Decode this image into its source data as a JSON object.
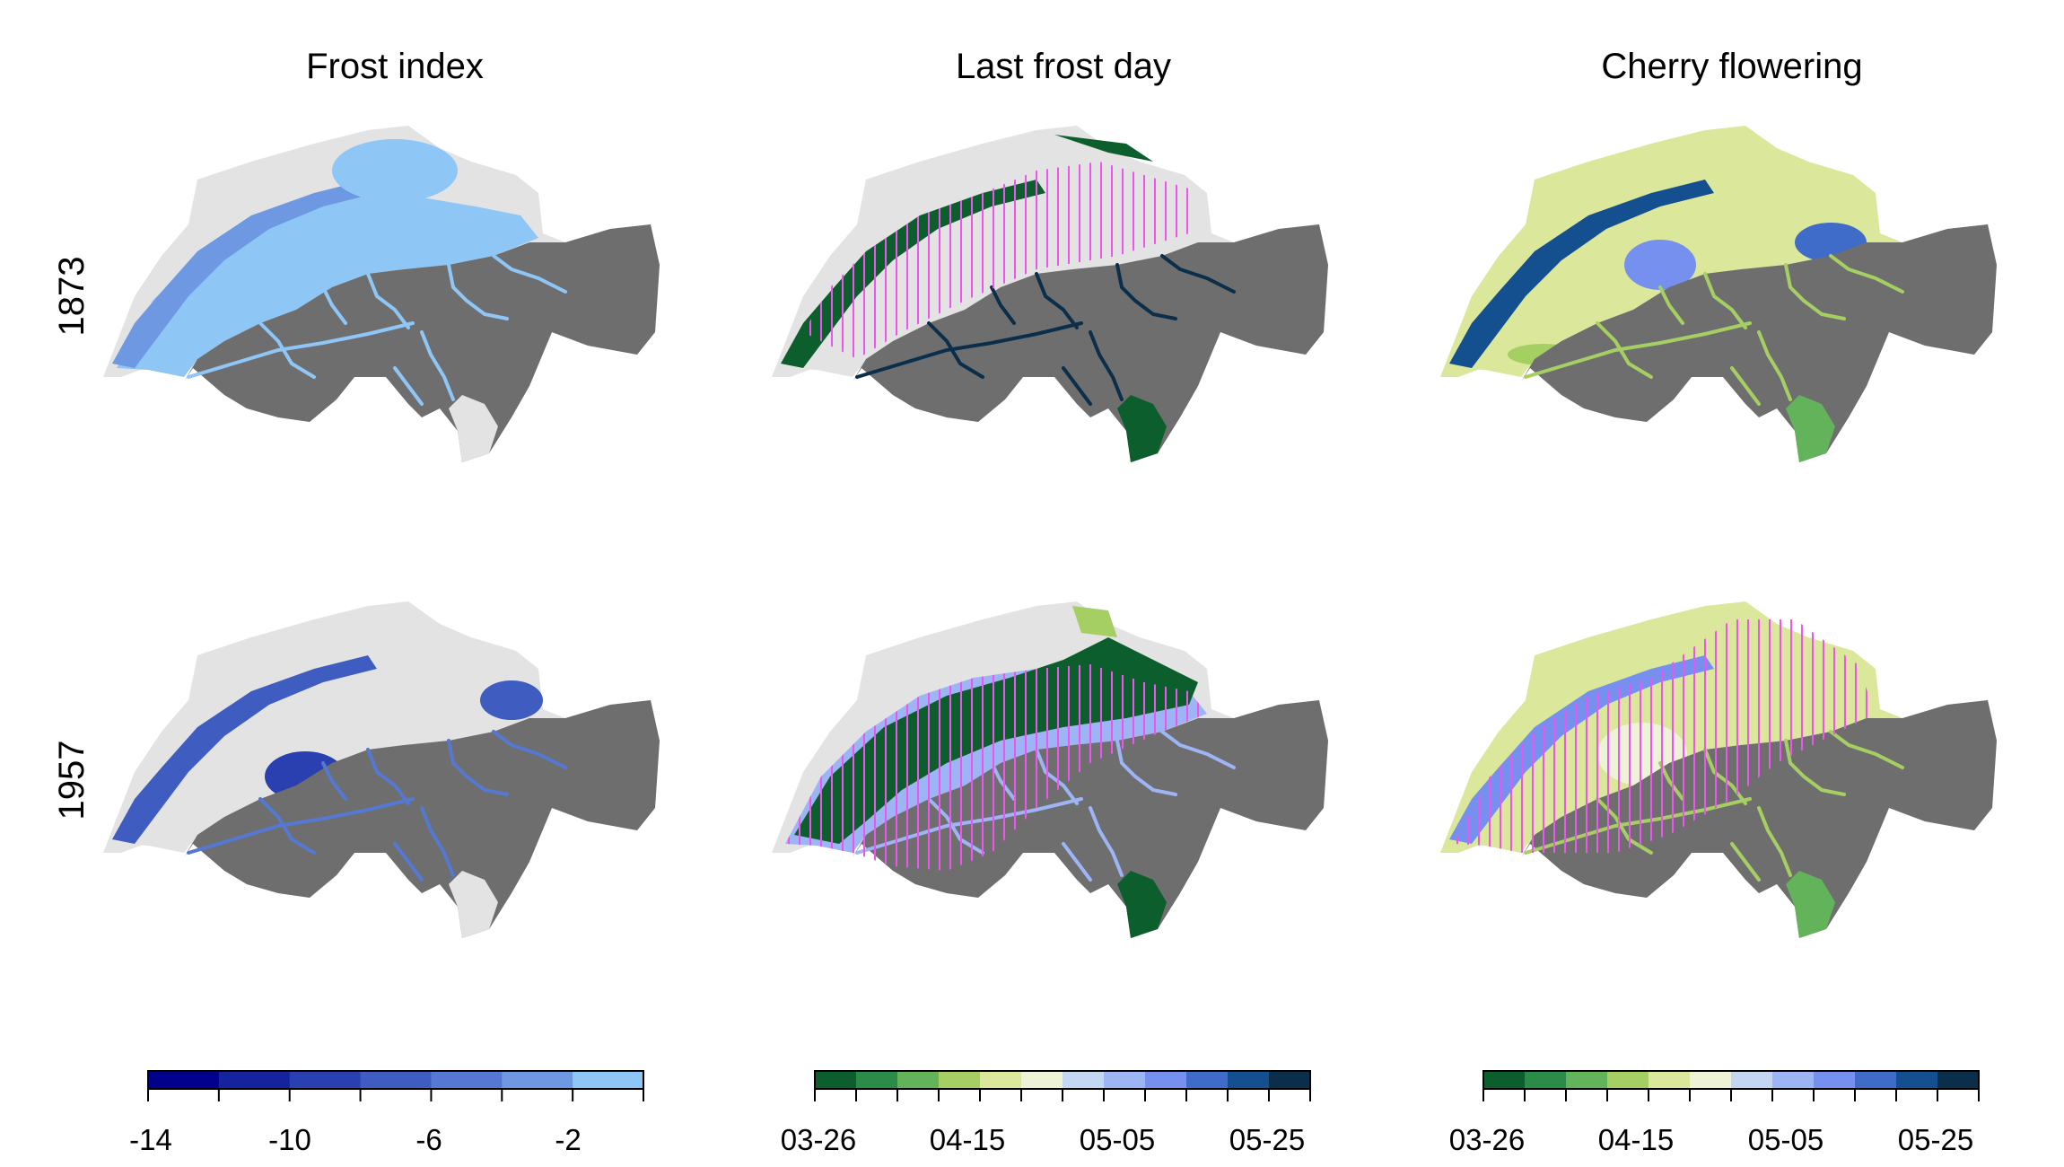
{
  "columns": [
    {
      "title": "Frost index"
    },
    {
      "title": "Last frost day"
    },
    {
      "title": "Cherry flowering"
    }
  ],
  "rows": [
    {
      "label": "1873"
    },
    {
      "label": "1957"
    }
  ],
  "colors": {
    "no_data_gray": "#6e6e6e",
    "light_gray": "#e3e3e3",
    "hatch_magenta": "#ee55ee",
    "frost_index": [
      "#00008b",
      "#15249e",
      "#2a40b0",
      "#3f5cc1",
      "#5578d2",
      "#6e98e2",
      "#8ec6f6"
    ],
    "date_scale": [
      "#0d5e2d",
      "#2b8c4a",
      "#62b35a",
      "#a6cf63",
      "#dbe79a",
      "#eef3d8",
      "#c3d6f2",
      "#9db5f5",
      "#7590ee",
      "#3f6bc9",
      "#144f8f",
      "#0b2f4a"
    ]
  },
  "colorbars": [
    {
      "name": "frost-index-colorbar",
      "ticks": [
        "-14",
        "-10",
        "-6",
        "-2"
      ]
    },
    {
      "name": "last-frost-colorbar",
      "ticks": [
        "03-26",
        "04-15",
        "05-05",
        "05-25"
      ]
    },
    {
      "name": "cherry-flowering-colorbar",
      "ticks": [
        "03-26",
        "04-15",
        "05-05",
        "05-25"
      ]
    }
  ]
}
